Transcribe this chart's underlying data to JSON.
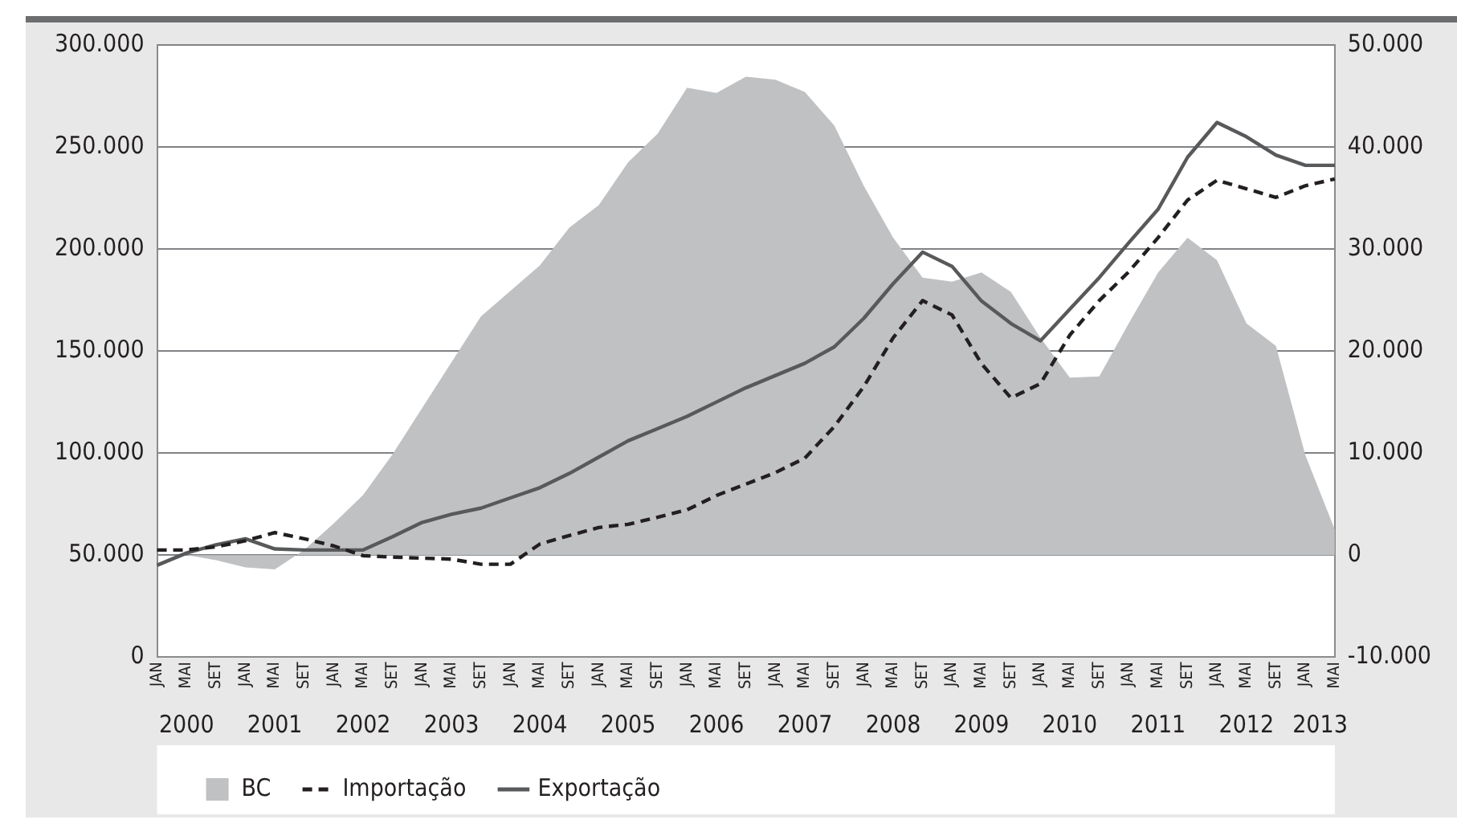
{
  "chart_data": {
    "type": "line",
    "categories": [
      "JAN",
      "MAI",
      "SET",
      "JAN",
      "MAI",
      "SET",
      "JAN",
      "MAI",
      "SET",
      "JAN",
      "MAI",
      "SET",
      "JAN",
      "MAI",
      "SET",
      "JAN",
      "MAI",
      "SET",
      "JAN",
      "MAI",
      "SET",
      "JAN",
      "MAI",
      "SET",
      "JAN",
      "MAI",
      "SET",
      "JAN",
      "MAI",
      "SET",
      "JAN",
      "MAI",
      "SET",
      "JAN",
      "MAI",
      "SET",
      "JAN",
      "MAI",
      "SET",
      "JAN",
      "MAI"
    ],
    "series": [
      {
        "name": "BC",
        "type": "area",
        "axis": "y2",
        "color": "#c0c1c3",
        "values": [
          0,
          0,
          -500,
          -1200,
          -1400,
          500,
          3100,
          5900,
          9900,
          14400,
          18900,
          23400,
          25900,
          28400,
          32100,
          34300,
          38500,
          41300,
          45800,
          45300,
          46900,
          46600,
          45400,
          42100,
          36200,
          31100,
          27200,
          26800,
          27700,
          25800,
          21300,
          17400,
          17500,
          22700,
          27700,
          31100,
          28900,
          22700,
          20500,
          9800,
          2500
        ]
      },
      {
        "name": "Importação",
        "line_style": "dashed",
        "color": "#231f20",
        "values": [
          52500,
          52500,
          54000,
          57000,
          61000,
          58000,
          54500,
          49700,
          49000,
          48500,
          48000,
          45500,
          45500,
          55400,
          59600,
          63500,
          65100,
          68500,
          72200,
          79200,
          84800,
          90400,
          97500,
          113000,
          132500,
          156500,
          174700,
          167700,
          143800,
          127000,
          134000,
          157800,
          174700,
          188800,
          205600,
          224000,
          233700,
          229500,
          225300,
          231000,
          234300
        ]
      },
      {
        "name": "Exportação",
        "line_style": "solid",
        "color": "#58595b",
        "values": [
          45000,
          51000,
          55000,
          58000,
          53000,
          52500,
          52500,
          52500,
          59000,
          66000,
          70000,
          73000,
          78000,
          83000,
          90000,
          98000,
          106000,
          112000,
          118000,
          125000,
          132000,
          138000,
          144000,
          152000,
          166000,
          183000,
          198500,
          191500,
          174500,
          163500,
          155000,
          170500,
          186000,
          203000,
          219500,
          245000,
          262000,
          255000,
          246000,
          241000,
          241000
        ]
      }
    ],
    "ylim": [
      0,
      300000
    ],
    "yticks": [
      {
        "value": 0,
        "label": "0"
      },
      {
        "value": 50000,
        "label": "50.000"
      },
      {
        "value": 100000,
        "label": "100.000"
      },
      {
        "value": 150000,
        "label": "150.000"
      },
      {
        "value": 200000,
        "label": "200.000"
      },
      {
        "value": 250000,
        "label": "250.000"
      },
      {
        "value": 300000,
        "label": "300.000"
      }
    ],
    "y2lim": [
      -10000,
      50000
    ],
    "y2ticks": [
      {
        "value": -10000,
        "label": "-10.000"
      },
      {
        "value": 0,
        "label": "0"
      },
      {
        "value": 10000,
        "label": "10.000"
      },
      {
        "value": 20000,
        "label": "20.000"
      },
      {
        "value": 30000,
        "label": "30.000"
      },
      {
        "value": 40000,
        "label": "40.000"
      },
      {
        "value": 50000,
        "label": "50.000"
      }
    ],
    "annotations": [
      "2000",
      "2001",
      "2002",
      "2003",
      "2004",
      "2005",
      "2006",
      "2007",
      "2008",
      "2009",
      "2010",
      "2011",
      "2012",
      "2013"
    ],
    "grid": "y",
    "legend": "bottom",
    "marker": "none"
  }
}
